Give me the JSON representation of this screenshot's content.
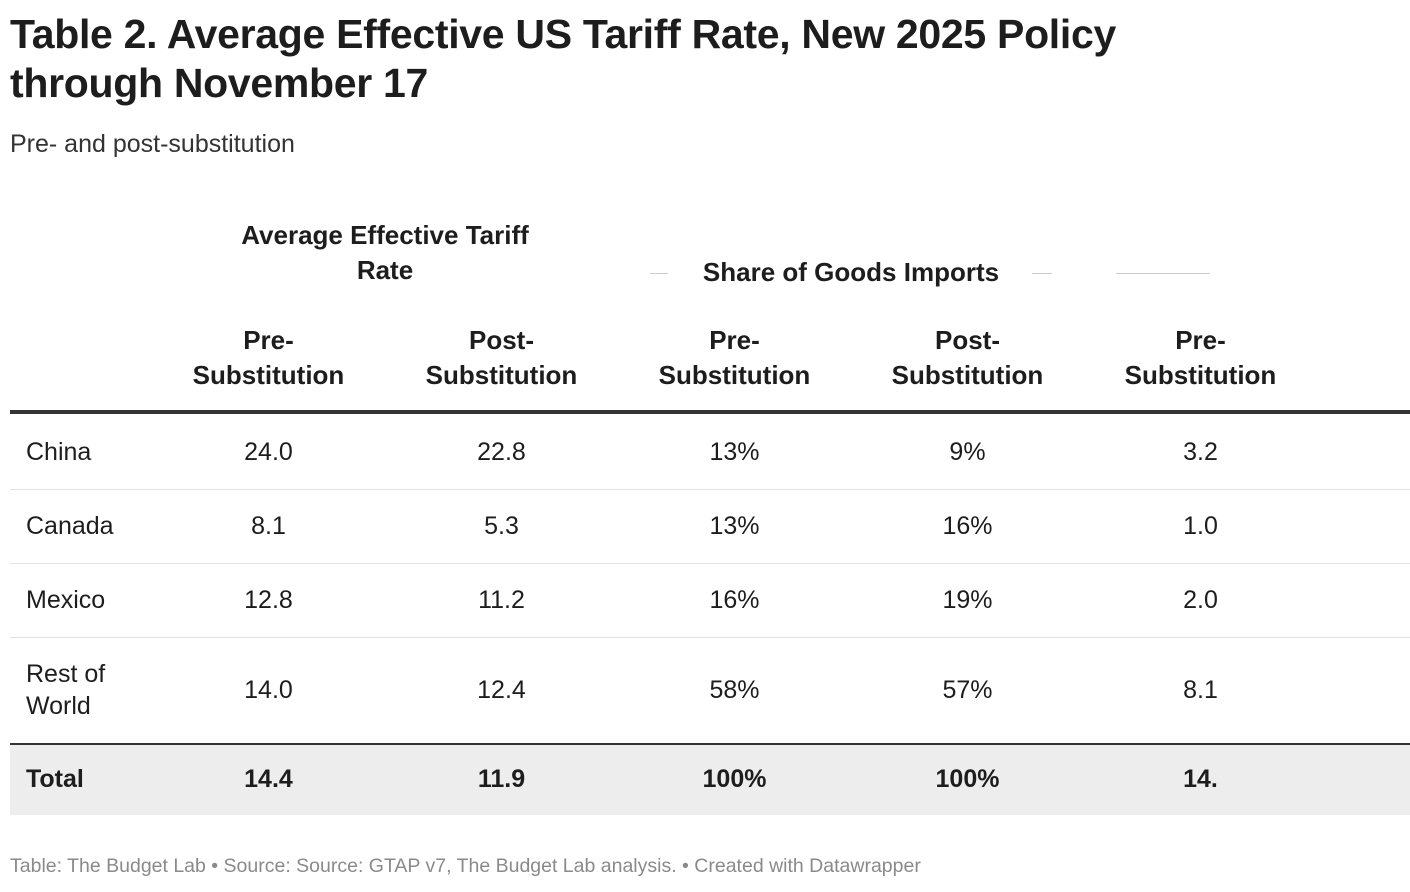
{
  "title": "Table 2. Average Effective US Tariff Rate, New 2025 Policy through November 17",
  "subtitle": "Pre- and post-substitution",
  "table": {
    "groups": [
      "Average Effective Tariff Rate",
      "Share of Goods Imports"
    ],
    "columns": [
      "Pre-Substitution",
      "Post-Substitution",
      "Pre-Substitution",
      "Post-Substitution",
      "Pre-Substitution"
    ],
    "rows": [
      [
        "China",
        "24.0",
        "22.8",
        "13%",
        "9%",
        "3.2"
      ],
      [
        "Canada",
        "8.1",
        "5.3",
        "13%",
        "16%",
        "1.0"
      ],
      [
        "Mexico",
        "12.8",
        "11.2",
        "16%",
        "19%",
        "2.0"
      ],
      [
        "Rest of World",
        "14.0",
        "12.4",
        "58%",
        "57%",
        "8.1"
      ]
    ],
    "total": [
      "Total",
      "14.4",
      "11.9",
      "100%",
      "100%",
      "14."
    ]
  },
  "footer": "Table: The Budget Lab • Source: Source: GTAP v7, The Budget Lab analysis. • Created with Datawrapper"
}
